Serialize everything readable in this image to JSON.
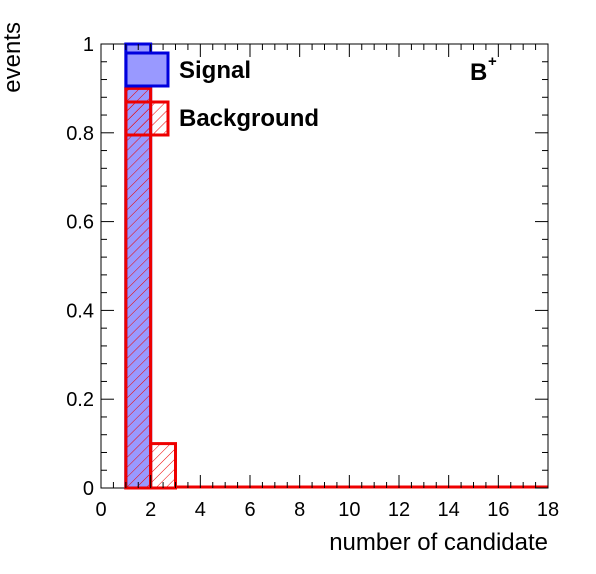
{
  "chart_data": {
    "type": "bar",
    "xlabel": "number of candidate",
    "ylabel": "events",
    "xlim": [
      0,
      18
    ],
    "ylim": [
      0,
      1.0
    ],
    "x_ticks": [
      0,
      2,
      4,
      6,
      8,
      10,
      12,
      14,
      16,
      18
    ],
    "y_ticks": [
      0,
      0.2,
      0.4,
      0.6,
      0.8,
      1
    ],
    "bin_edges": [
      1,
      2,
      3,
      4,
      5,
      6,
      7,
      8,
      9,
      10,
      11,
      12,
      13,
      14,
      15,
      16,
      17,
      18
    ],
    "series": [
      {
        "name": "Signal",
        "style": "filled",
        "color": "#0000dd",
        "fill": "#9999ff",
        "values": [
          1.0,
          0,
          0,
          0,
          0,
          0,
          0,
          0,
          0,
          0,
          0,
          0,
          0,
          0,
          0,
          0,
          0
        ]
      },
      {
        "name": "Background",
        "style": "hatched",
        "color": "#ee0000",
        "fill": "none",
        "values": [
          0.9,
          0.1,
          0,
          0,
          0,
          0,
          0,
          0,
          0,
          0,
          0,
          0,
          0,
          0,
          0,
          0,
          0
        ]
      }
    ],
    "annotation": {
      "text": "B",
      "superscript": "+"
    },
    "legend": "top-left",
    "grid": false
  }
}
